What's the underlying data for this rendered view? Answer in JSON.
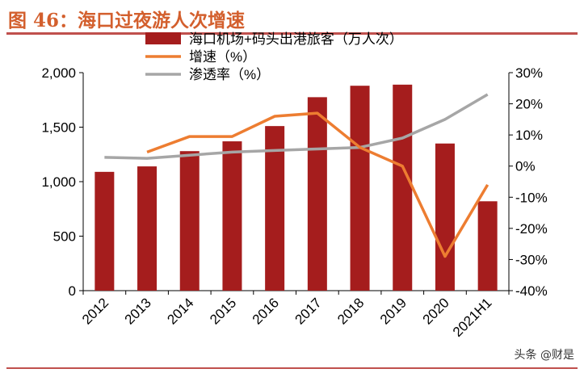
{
  "title": "图 46：海口过夜游人次增速",
  "watermark": "头条 @财是",
  "colors": {
    "bar": "#a51d1d",
    "growth": "#ed7d31",
    "penetration": "#a6a6a6",
    "title": "#d35f2d",
    "rule": "#c0504d"
  },
  "chart_data": {
    "type": "bar",
    "categories": [
      "2012",
      "2013",
      "2014",
      "2015",
      "2016",
      "2017",
      "2018",
      "2019",
      "2020",
      "2021H1"
    ],
    "left_axis": {
      "ylim": [
        0,
        2000
      ],
      "ticks": [
        0,
        500,
        1000,
        1500,
        2000
      ],
      "tick_labels": [
        "0",
        "500",
        "1,000",
        "1,500",
        "2,000"
      ]
    },
    "right_axis": {
      "ylim": [
        -40,
        30
      ],
      "ticks": [
        -40,
        -30,
        -20,
        -10,
        0,
        10,
        20,
        30
      ],
      "tick_labels": [
        "-40%",
        "-30%",
        "-20%",
        "-10%",
        "0%",
        "10%",
        "20%",
        "30%"
      ]
    },
    "series": [
      {
        "name": "海口机场+码头出港旅客（万人次）",
        "type": "bar",
        "axis": "left",
        "values": [
          1090,
          1140,
          1280,
          1370,
          1510,
          1775,
          1880,
          1890,
          1350,
          820
        ]
      },
      {
        "name": "增速（%）",
        "type": "line",
        "axis": "right",
        "values": [
          null,
          4.5,
          9.5,
          9.5,
          16,
          17,
          6,
          0,
          -29,
          -6
        ]
      },
      {
        "name": "渗透率（%）",
        "type": "line",
        "axis": "right",
        "values": [
          2.8,
          2.5,
          3.5,
          4.5,
          5,
          5.5,
          6,
          9,
          15,
          23
        ]
      }
    ],
    "legend_position": "top-center",
    "grid": false
  }
}
